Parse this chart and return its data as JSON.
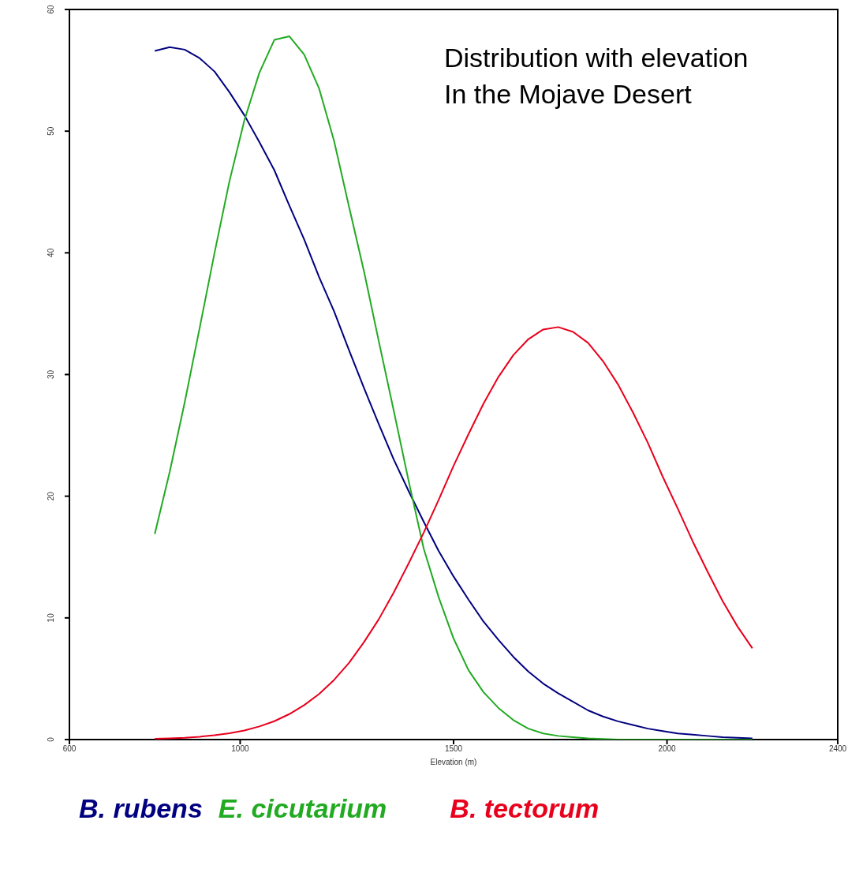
{
  "chart_data": {
    "type": "line",
    "title": "Distribution with elevation\nIn the Mojave Desert",
    "xlabel": "Elevation (m)",
    "x": [
      800,
      835,
      870,
      905,
      940,
      975,
      1010,
      1045,
      1080,
      1115,
      1150,
      1185,
      1220,
      1255,
      1290,
      1325,
      1360,
      1395,
      1430,
      1465,
      1500,
      1535,
      1570,
      1605,
      1640,
      1675,
      1710,
      1745,
      1780,
      1815,
      1850,
      1885,
      1920,
      1955,
      1990,
      2025,
      2060,
      2095,
      2130,
      2165,
      2200
    ],
    "series": [
      {
        "name": "B. rubens",
        "color": "#000080",
        "values": [
          56.6,
          56.9,
          56.7,
          56.0,
          54.9,
          53.2,
          51.3,
          49.1,
          46.8,
          43.9,
          41.1,
          38.0,
          35.2,
          32.0,
          28.9,
          25.9,
          23.0,
          20.4,
          17.9,
          15.5,
          13.4,
          11.5,
          9.7,
          8.2,
          6.8,
          5.6,
          4.6,
          3.8,
          3.1,
          2.4,
          1.9,
          1.5,
          1.2,
          0.9,
          0.7,
          0.5,
          0.4,
          0.3,
          0.2,
          0.15,
          0.1
        ]
      },
      {
        "name": "E. cicutarium",
        "color": "#22aa22",
        "values": [
          16.9,
          22.0,
          27.7,
          33.8,
          40.0,
          45.9,
          50.9,
          54.8,
          57.5,
          57.8,
          56.3,
          53.5,
          49.2,
          43.8,
          38.5,
          32.7,
          27.0,
          21.2,
          15.7,
          11.7,
          8.3,
          5.7,
          3.9,
          2.6,
          1.6,
          0.9,
          0.5,
          0.3,
          0.2,
          0.1,
          0.05,
          0,
          0,
          0,
          0,
          0,
          0,
          0,
          0,
          0,
          0
        ]
      },
      {
        "name": "B. tectorum",
        "color": "#e8001c",
        "values": [
          0.06,
          0.1,
          0.15,
          0.23,
          0.35,
          0.52,
          0.75,
          1.08,
          1.51,
          2.09,
          2.83,
          3.75,
          4.9,
          6.3,
          8.0,
          9.9,
          12.1,
          14.5,
          17.0,
          19.7,
          22.5,
          25.1,
          27.6,
          29.8,
          31.6,
          32.9,
          33.7,
          33.9,
          33.5,
          32.6,
          31.1,
          29.2,
          26.9,
          24.4,
          21.6,
          19.0,
          16.3,
          13.8,
          11.4,
          9.3,
          7.5
        ]
      }
    ],
    "xlim": [
      600,
      2400
    ],
    "xticks": [
      600,
      1000,
      1500,
      2000,
      2400
    ],
    "ylim": [
      0,
      60
    ],
    "yticks": [
      0,
      10,
      20,
      30,
      40,
      50,
      60
    ],
    "grid": false,
    "legend": "bottom",
    "marker": "none",
    "line_style": "solid"
  }
}
